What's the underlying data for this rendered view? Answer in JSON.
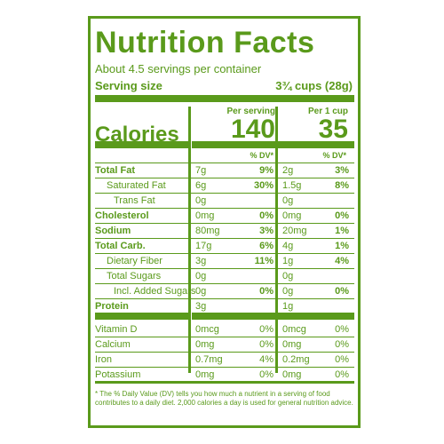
{
  "title": "Nutrition Facts",
  "servings": "About 4.5 servings per container",
  "serving_size": {
    "label": "Serving size",
    "value": "3¾ cups (28g)"
  },
  "columns": {
    "per_serving": "Per serving",
    "per_cup": "Per 1 cup"
  },
  "calories": {
    "label": "Calories",
    "per_serving": "140",
    "per_cup": "35"
  },
  "dv_header": "% DV*",
  "nutrients": [
    {
      "name": "Total Fat",
      "amt1": "7g",
      "dv1": "9%",
      "amt2": "2g",
      "dv2": "3%"
    },
    {
      "name": "Saturated Fat",
      "amt1": "6g",
      "dv1": "30%",
      "amt2": "1.5g",
      "dv2": "8%"
    },
    {
      "name": "Trans Fat",
      "amt1": "0g",
      "dv1": "",
      "amt2": "0g",
      "dv2": ""
    },
    {
      "name": "Cholesterol",
      "amt1": "0mg",
      "dv1": "0%",
      "amt2": "0mg",
      "dv2": "0%"
    },
    {
      "name": "Sodium",
      "amt1": "80mg",
      "dv1": "3%",
      "amt2": "20mg",
      "dv2": "1%"
    },
    {
      "name": "Total Carb.",
      "amt1": "17g",
      "dv1": "6%",
      "amt2": "4g",
      "dv2": "1%"
    },
    {
      "name": "Dietary Fiber",
      "amt1": "3g",
      "dv1": "11%",
      "amt2": "1g",
      "dv2": "4%"
    },
    {
      "name": "Total Sugars",
      "amt1": "0g",
      "dv1": "",
      "amt2": "0g",
      "dv2": ""
    },
    {
      "name": "Incl. Added Sugars",
      "amt1": "0g",
      "dv1": "0%",
      "amt2": "0g",
      "dv2": "0%"
    },
    {
      "name": "Protein",
      "amt1": "3g",
      "dv1": "",
      "amt2": "1g",
      "dv2": ""
    }
  ],
  "vitamins": [
    {
      "name": "Vitamin D",
      "amt1": "0mcg",
      "dv1": "0%",
      "amt2": "0mcg",
      "dv2": "0%"
    },
    {
      "name": "Calcium",
      "amt1": "0mg",
      "dv1": "0%",
      "amt2": "0mg",
      "dv2": "0%"
    },
    {
      "name": "Iron",
      "amt1": "0.7mg",
      "dv1": "4%",
      "amt2": "0.2mg",
      "dv2": "0%"
    },
    {
      "name": "Potassium",
      "amt1": "0mg",
      "dv1": "0%",
      "amt2": "0mg",
      "dv2": "0%"
    }
  ],
  "footnote": "* The % Daily Value (DV) tells you how much a nutrient in a serving of food contributes to a daily diet. 2,000 calories a day is used for general nutrition advice.",
  "colors": {
    "label_green": "#5a9a1b"
  }
}
